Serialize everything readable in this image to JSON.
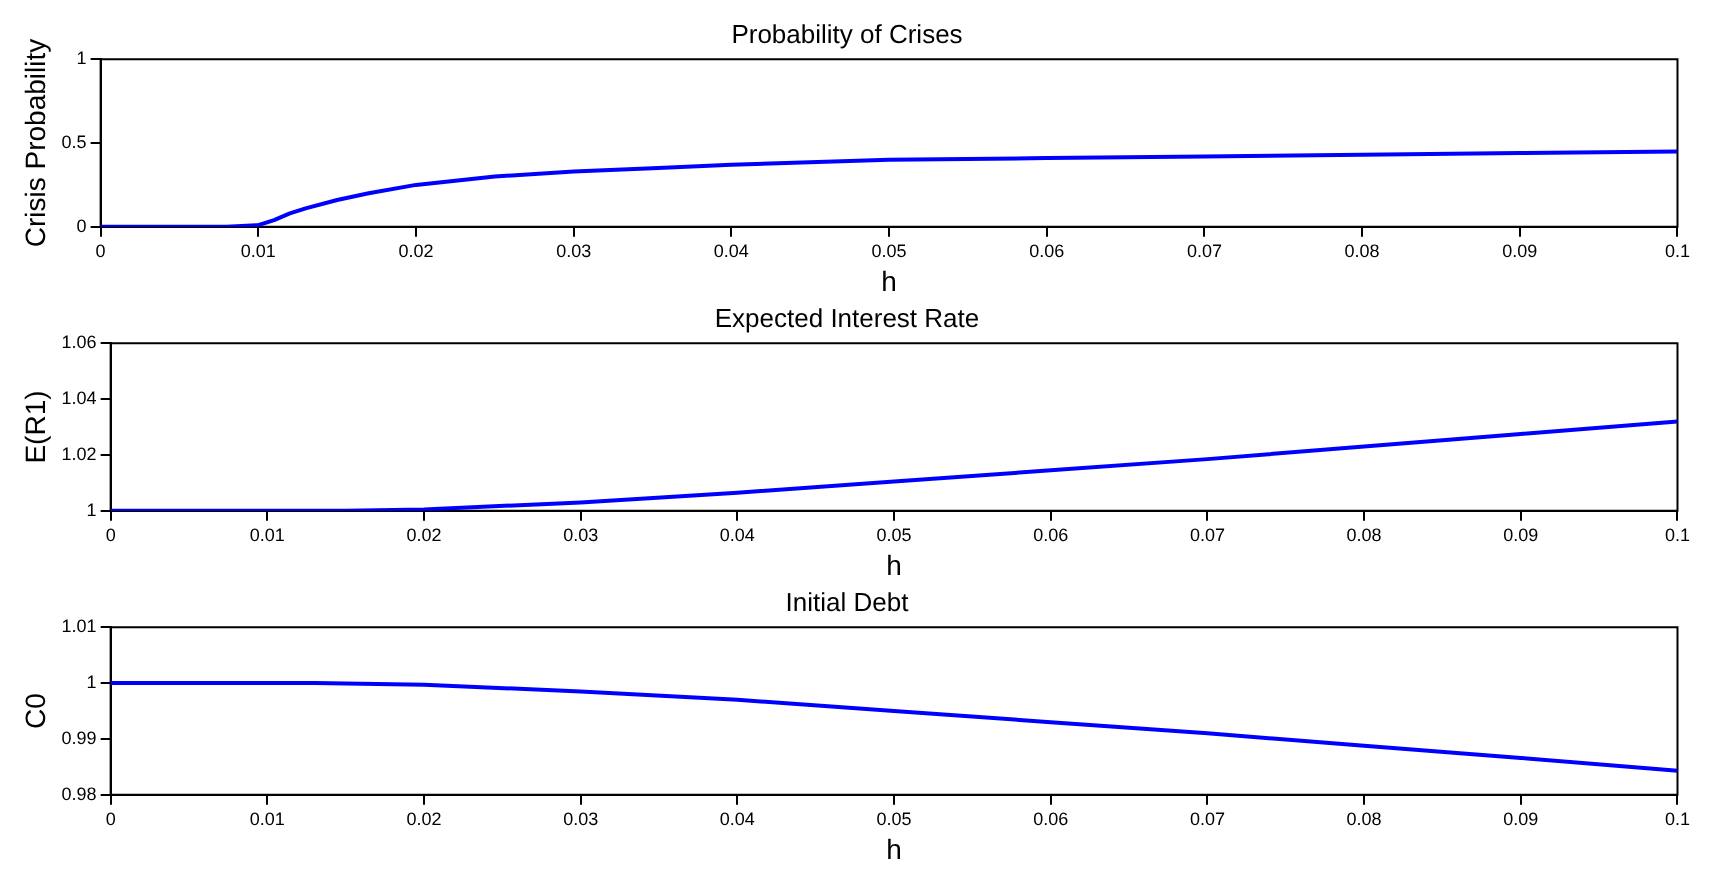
{
  "chart_data": [
    {
      "type": "line",
      "title": "Probability of Crises",
      "xlabel": "h",
      "ylabel": "Crisis Probability",
      "x": [
        0,
        0.004,
        0.008,
        0.01,
        0.011,
        0.012,
        0.013,
        0.015,
        0.017,
        0.02,
        0.025,
        0.03,
        0.035,
        0.04,
        0.05,
        0.06,
        0.07,
        0.08,
        0.09,
        0.1
      ],
      "series": [
        {
          "color": "#0000ff",
          "values": [
            0,
            0,
            0,
            0.01,
            0.04,
            0.08,
            0.11,
            0.16,
            0.2,
            0.25,
            0.3,
            0.33,
            0.35,
            0.37,
            0.4,
            0.41,
            0.42,
            0.43,
            0.44,
            0.45
          ]
        }
      ],
      "xlim": [
        0,
        0.1
      ],
      "xticks": [
        0,
        0.01,
        0.02,
        0.03,
        0.04,
        0.05,
        0.06,
        0.07,
        0.08,
        0.09,
        0.1
      ],
      "ylim": [
        0,
        1
      ],
      "yticks": [
        0,
        0.5,
        1
      ],
      "grid": false,
      "legend": false,
      "marker": "none",
      "line_style": "solid"
    },
    {
      "type": "line",
      "title": "Expected Interest Rate",
      "xlabel": "h",
      "ylabel": "E(R1)",
      "x": [
        0,
        0.01,
        0.015,
        0.02,
        0.03,
        0.04,
        0.05,
        0.06,
        0.07,
        0.08,
        0.09,
        0.1
      ],
      "series": [
        {
          "color": "#0000ff",
          "values": [
            1,
            1,
            1,
            1.0005,
            1.003,
            1.0065,
            1.0105,
            1.0145,
            1.0185,
            1.023,
            1.0275,
            1.032
          ]
        }
      ],
      "xlim": [
        0,
        0.1
      ],
      "xticks": [
        0,
        0.01,
        0.02,
        0.03,
        0.04,
        0.05,
        0.06,
        0.07,
        0.08,
        0.09,
        0.1
      ],
      "ylim": [
        1,
        1.06
      ],
      "yticks": [
        1,
        1.02,
        1.04,
        1.06
      ],
      "grid": false,
      "legend": false,
      "marker": "none",
      "line_style": "solid"
    },
    {
      "type": "line",
      "title": "Initial Debt",
      "xlabel": "h",
      "ylabel": "C0",
      "x": [
        0,
        0.01,
        0.013,
        0.02,
        0.03,
        0.04,
        0.05,
        0.06,
        0.07,
        0.08,
        0.09,
        0.1
      ],
      "series": [
        {
          "color": "#0000ff",
          "values": [
            1,
            1,
            1,
            0.9997,
            0.9985,
            0.997,
            0.995,
            0.993,
            0.991,
            0.9888,
            0.9866,
            0.9843
          ]
        }
      ],
      "xlim": [
        0,
        0.1
      ],
      "xticks": [
        0,
        0.01,
        0.02,
        0.03,
        0.04,
        0.05,
        0.06,
        0.07,
        0.08,
        0.09,
        0.1
      ],
      "ylim": [
        0.98,
        1.01
      ],
      "yticks": [
        0.98,
        0.99,
        1,
        1.01
      ],
      "grid": false,
      "legend": false,
      "marker": "none",
      "line_style": "solid"
    }
  ]
}
